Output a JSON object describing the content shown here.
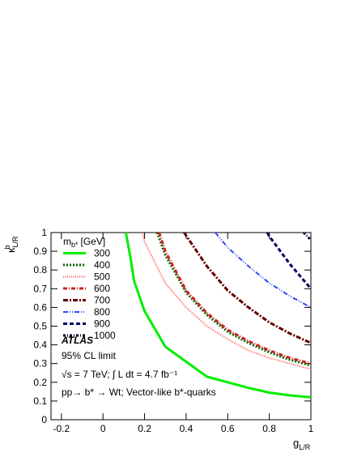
{
  "chart_data": {
    "type": "line",
    "x_label": {
      "symbol": "g",
      "subscript": "L/R"
    },
    "y_label": {
      "symbol": "κ",
      "superscript": "b",
      "subscript": "L/R"
    },
    "legend_title": {
      "symbol": "m",
      "subscript": "b*",
      "unit": "[GeV]"
    },
    "annotations": [
      "ATLAS",
      "95% CL limit",
      "√s = 7 TeV; ∫ L dt = 4.7 fb⁻¹",
      "pp→ b* → Wt; Vector-like b*-quarks"
    ],
    "xlim": [
      -0.25,
      1
    ],
    "ylim": [
      0,
      1
    ],
    "xticks": [
      -0.2,
      0,
      0.2,
      0.4,
      0.6,
      0.8,
      1
    ],
    "yticks": [
      0,
      0.1,
      0.2,
      0.3,
      0.4,
      0.5,
      0.6,
      0.7,
      0.8,
      0.9,
      1
    ],
    "legend": "upper left",
    "series": [
      {
        "name": "300",
        "color": "#00ee00",
        "width": 3,
        "dash": "none",
        "x": [
          0.11,
          0.13,
          0.15,
          0.2,
          0.3,
          0.4,
          0.5,
          0.6,
          0.7,
          0.8,
          0.9,
          1.0
        ],
        "values": [
          1,
          0.88,
          0.74,
          0.58,
          0.39,
          0.31,
          0.23,
          0.2,
          0.17,
          0.145,
          0.13,
          0.12
        ]
      },
      {
        "name": "400",
        "color": "#006600",
        "width": 3,
        "dash": "2 2",
        "x": [
          0.26,
          0.3,
          0.4,
          0.5,
          0.6,
          0.7,
          0.8,
          0.9,
          1.0
        ],
        "values": [
          1,
          0.88,
          0.68,
          0.56,
          0.47,
          0.41,
          0.36,
          0.32,
          0.29
        ]
      },
      {
        "name": "500",
        "color": "#ff5555",
        "width": 2,
        "dash": "1 1.5",
        "x": [
          0.19,
          0.2,
          0.3,
          0.4,
          0.5,
          0.6,
          0.7,
          0.8,
          0.9,
          1.0
        ],
        "values": [
          1,
          0.95,
          0.73,
          0.6,
          0.5,
          0.43,
          0.37,
          0.33,
          0.3,
          0.27
        ]
      },
      {
        "name": "600",
        "color": "#cc2222",
        "width": 3,
        "dash": "5 2 1 2",
        "x": [
          0.27,
          0.3,
          0.4,
          0.5,
          0.6,
          0.7,
          0.8,
          0.9,
          1.0
        ],
        "values": [
          1,
          0.9,
          0.69,
          0.57,
          0.48,
          0.42,
          0.37,
          0.33,
          0.3
        ]
      },
      {
        "name": "700",
        "color": "#660000",
        "width": 3,
        "dash": "6 2 2 2",
        "x": [
          0.39,
          0.5,
          0.6,
          0.7,
          0.8,
          0.9,
          1.0
        ],
        "values": [
          1,
          0.82,
          0.69,
          0.6,
          0.52,
          0.46,
          0.41
        ]
      },
      {
        "name": "800",
        "color": "#3344ff",
        "width": 2,
        "dash": "6 2 1 2 1 2",
        "x": [
          0.54,
          0.6,
          0.7,
          0.8,
          0.9,
          1.0
        ],
        "values": [
          1,
          0.92,
          0.82,
          0.73,
          0.66,
          0.6
        ]
      },
      {
        "name": "900",
        "color": "#000066",
        "width": 3,
        "dash": "5 3",
        "x": [
          0.79,
          0.8,
          0.9,
          1.0
        ],
        "values": [
          1,
          0.98,
          0.83,
          0.7
        ]
      },
      {
        "name": "1000",
        "color": "#000022",
        "width": 3,
        "dash": "3 2 1 2",
        "x": [
          0.965,
          1.0
        ],
        "values": [
          1,
          0.96
        ]
      }
    ]
  }
}
